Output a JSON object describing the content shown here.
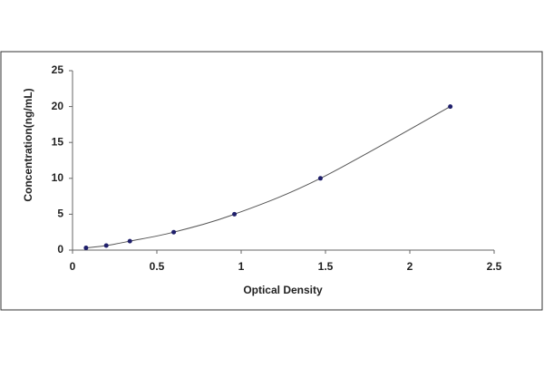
{
  "chart_data": {
    "type": "scatter",
    "x_label": "Optical Density",
    "y_label": "Concentration(ng/mL)",
    "series": [
      {
        "x": [
          0.08,
          0.2,
          0.34,
          0.6,
          0.96,
          1.47,
          2.24
        ],
        "values": [
          0.31,
          0.63,
          1.25,
          2.5,
          5,
          10,
          20
        ],
        "color": "#1f1f6b"
      }
    ],
    "connect": true,
    "xlim": [
      0,
      2.5
    ],
    "xticks": [
      0,
      0.5,
      1,
      1.5,
      2,
      2.5
    ],
    "ylim": [
      0,
      25
    ],
    "yticks": [
      0,
      5,
      10,
      15,
      20,
      25
    ]
  }
}
